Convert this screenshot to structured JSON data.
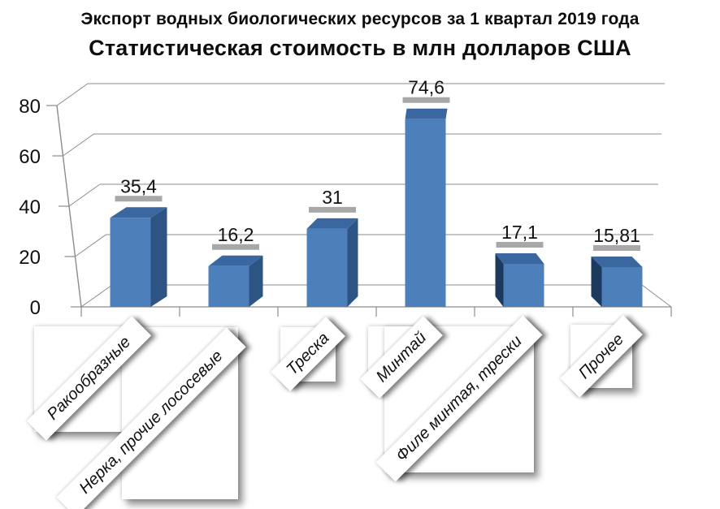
{
  "title": {
    "line1": "Экспорт водных биологических ресурсов за 1 квартал 2019 года",
    "line2": "Статистическая стоимость в млн долларов США"
  },
  "chart_data": {
    "type": "bar",
    "style": "3d-perspective",
    "title": "Экспорт водных биологических ресурсов за 1 квартал 2019 года",
    "subtitle": "Статистическая стоимость в млн долларов США",
    "categories": [
      "Ракообразные",
      "Нерка, прочие лососевые",
      "Треска",
      "Минтай",
      "Филе минтая, трески",
      "Прочее"
    ],
    "values": [
      35.4,
      16.2,
      31,
      74.6,
      17.1,
      15.81
    ],
    "value_labels": [
      "35,4",
      "16,2",
      "31",
      "74,6",
      "17,1",
      "15,81"
    ],
    "y_ticks": [
      0,
      20,
      40,
      60,
      80
    ],
    "y_tick_labels": [
      "0",
      "20",
      "40",
      "60",
      "80"
    ],
    "ylim": [
      0,
      80
    ],
    "xlabel": "",
    "ylabel": "",
    "legend": "none",
    "grid": true,
    "colors": {
      "bar_front": "#4d80bb",
      "bar_top": "#3a679f",
      "bar_side_right": "#2d5482",
      "bar_side_left": "#1b3a5e",
      "marker": "#a8a8a8",
      "gridline": "#8c8c8c",
      "axis": "#7f7f7f",
      "text": "#111111"
    }
  }
}
